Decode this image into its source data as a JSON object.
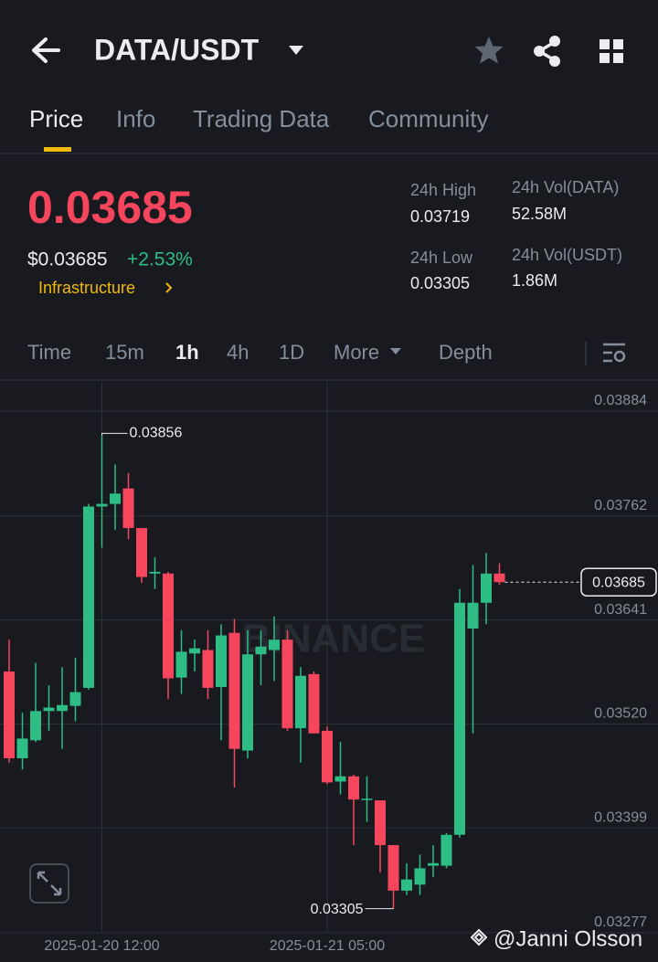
{
  "header": {
    "title": "DATA/USDT"
  },
  "tabs": [
    "Price",
    "Info",
    "Trading Data",
    "Community"
  ],
  "summary": {
    "price": "0.03685",
    "usd_price": "$0.03685",
    "change": "+2.53%",
    "tag": "Infrastructure",
    "stats": [
      {
        "label": "24h High",
        "value": "0.03719"
      },
      {
        "label": "24h Vol(DATA)",
        "value": "52.58M"
      },
      {
        "label": "24h Low",
        "value": "0.03305"
      },
      {
        "label": "24h Vol(USDT)",
        "value": "1.86M"
      }
    ]
  },
  "intervals": [
    "Time",
    "15m",
    "1h",
    "4h",
    "1D",
    "More",
    "Depth"
  ],
  "watermark": "BINANCE",
  "credit": "@Janni Olsson",
  "chart_data": {
    "type": "candlestick",
    "categories": [
      null,
      null,
      null,
      null,
      null,
      null,
      null,
      "2025-01-20 12:00",
      null,
      null,
      null,
      null,
      null,
      null,
      null,
      null,
      null,
      null,
      null,
      null,
      null,
      null,
      null,
      null,
      "2025-01-21 05:00",
      null,
      null,
      null,
      null,
      null,
      null,
      null,
      null,
      null,
      null,
      null,
      null,
      null
    ],
    "open": [
      0.03581,
      0.0348,
      0.03501,
      0.03535,
      0.03535,
      0.03541,
      0.03562,
      0.03773,
      0.03776,
      0.03794,
      0.03748,
      0.03695,
      0.03695,
      0.03574,
      0.03602,
      0.03606,
      0.03563,
      0.03626,
      0.03489,
      0.03601,
      0.03606,
      0.03618,
      0.03515,
      0.03578,
      0.03512,
      0.03453,
      0.03459,
      0.03432,
      0.03431,
      0.03379,
      0.03326,
      0.03333,
      0.03355,
      0.03355,
      0.03391,
      0.03631,
      0.03661,
      0.03695
    ],
    "high": [
      0.03618,
      0.03533,
      0.03591,
      0.03565,
      0.03586,
      0.03597,
      0.03776,
      0.03856,
      0.03822,
      0.03812,
      0.03748,
      0.03714,
      0.03697,
      0.03629,
      0.03618,
      0.03629,
      0.03636,
      0.03642,
      0.03629,
      0.03629,
      0.03645,
      0.03629,
      0.03586,
      0.03581,
      0.03517,
      0.03499,
      0.03461,
      0.03459,
      0.03431,
      0.03379,
      0.03358,
      0.03368,
      0.03379,
      0.03393,
      0.03677,
      0.03705,
      0.03719,
      0.03707
    ],
    "low": [
      0.03475,
      0.03467,
      0.03499,
      0.03512,
      0.03491,
      0.03523,
      0.0356,
      0.03725,
      0.03746,
      0.03735,
      0.03684,
      0.03677,
      0.03549,
      0.03555,
      0.03581,
      0.03549,
      0.03501,
      0.03446,
      0.0348,
      0.03565,
      0.0357,
      0.03512,
      0.03475,
      0.03509,
      0.0345,
      0.03438,
      0.03379,
      0.03406,
      0.03347,
      0.03305,
      0.03321,
      0.03321,
      0.03342,
      0.03352,
      0.03388,
      0.03509,
      0.03636,
      0.03682
    ],
    "close": [
      0.0348,
      0.03503,
      0.03535,
      0.03539,
      0.03542,
      0.03557,
      0.03773,
      0.03776,
      0.03788,
      0.03748,
      0.03691,
      0.03697,
      0.03573,
      0.03604,
      0.03608,
      0.03562,
      0.03623,
      0.03491,
      0.03601,
      0.0361,
      0.03618,
      0.03515,
      0.03576,
      0.03509,
      0.03452,
      0.03459,
      0.03432,
      0.03433,
      0.03379,
      0.03326,
      0.03339,
      0.03352,
      0.03358,
      0.03391,
      0.03661,
      0.03661,
      0.03695,
      0.03685
    ],
    "up_color": "#2ebd85",
    "down_color": "#f6465d",
    "ylim": [
      0.03277,
      0.03884
    ],
    "yticks": [
      0.03884,
      0.03762,
      0.03641,
      {
        "value": 0.0352,
        "label": "0.03520"
      },
      0.03399,
      0.03277
    ],
    "grid": true
  }
}
